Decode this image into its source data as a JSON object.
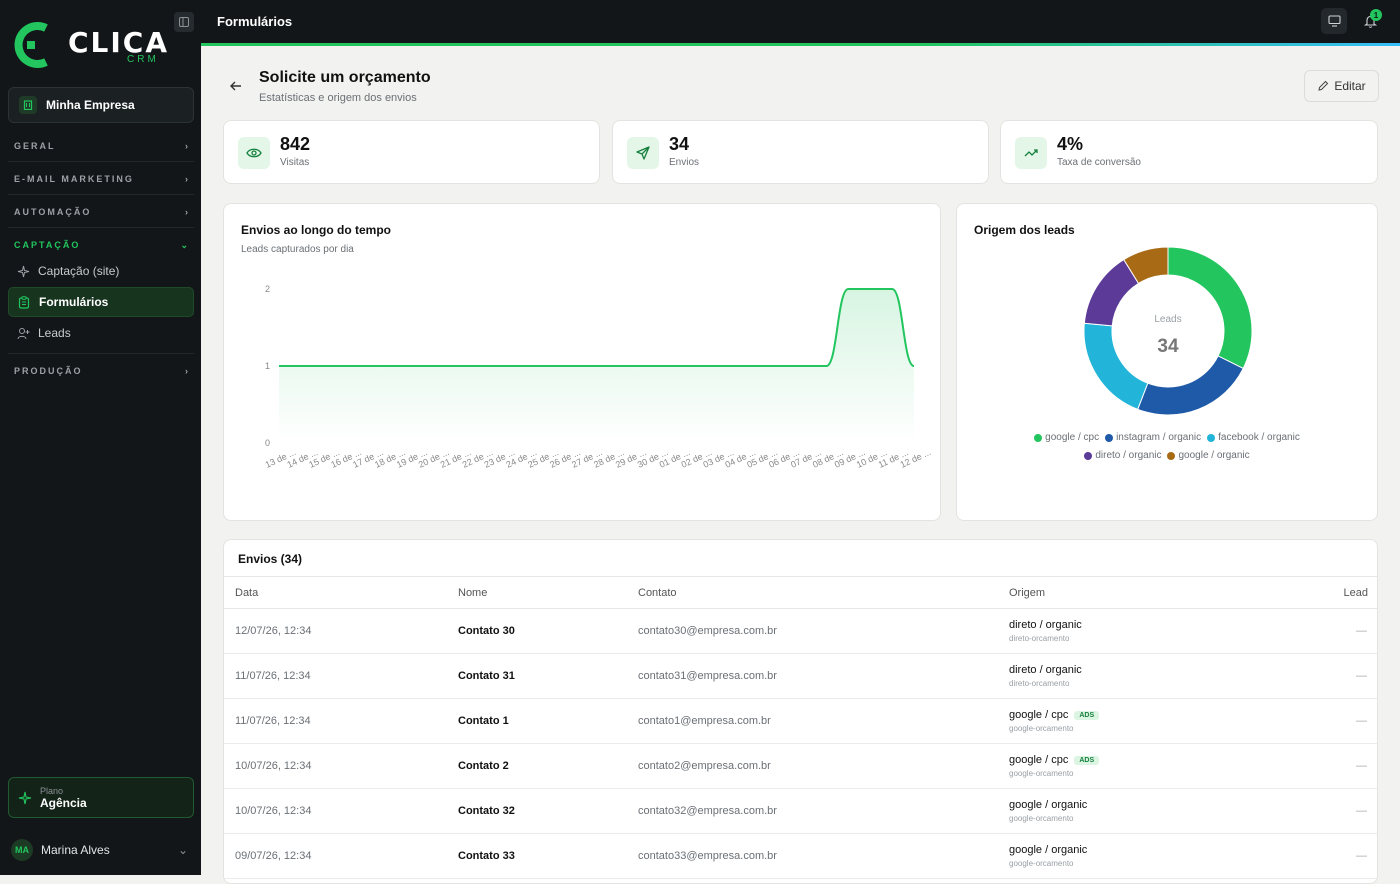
{
  "brand": {
    "name": "CLICA",
    "sub": "CRM"
  },
  "sidebar": {
    "company": "Minha Empresa",
    "sections": [
      {
        "label": "GERAL"
      },
      {
        "label": "E-MAIL MARKETING"
      },
      {
        "label": "AUTOMAÇÃO"
      },
      {
        "label": "CAPTAÇÃO"
      },
      {
        "label": "PRODUÇÃO"
      }
    ],
    "items": [
      {
        "label": "Captação (site)"
      },
      {
        "label": "Formulários"
      },
      {
        "label": "Leads"
      }
    ],
    "plan": {
      "label": "Plano",
      "value": "Agência"
    },
    "user": {
      "initials": "MA",
      "name": "Marina Alves"
    }
  },
  "topbar": {
    "title": "Formulários",
    "notifications": "1"
  },
  "header": {
    "title": "Solicite um orçamento",
    "subtitle": "Estatísticas e origem dos envios",
    "edit_label": "Editar"
  },
  "stats": [
    {
      "value": "842",
      "label": "Visitas",
      "icon": "eye-icon"
    },
    {
      "value": "34",
      "label": "Envios",
      "icon": "send-icon"
    },
    {
      "value": "4%",
      "label": "Taxa de conversão",
      "icon": "trending-up-icon"
    }
  ],
  "line_card": {
    "title": "Envios ao longo do tempo",
    "subtitle": "Leads capturados por dia"
  },
  "pie_card": {
    "title": "Origem dos leads",
    "center_label": "Leads",
    "center_value": "34"
  },
  "chart_data": [
    {
      "type": "area",
      "title": "Envios ao longo do tempo",
      "x": [
        "13 de ...",
        "14 de ...",
        "15 de ...",
        "16 de ...",
        "17 de ...",
        "18 de ...",
        "19 de ...",
        "20 de ...",
        "21 de ...",
        "22 de ...",
        "23 de ...",
        "24 de ...",
        "25 de ...",
        "26 de ...",
        "27 de ...",
        "28 de ...",
        "29 de ...",
        "30 de ...",
        "01 de ...",
        "02 de ...",
        "03 de ...",
        "04 de ...",
        "05 de ...",
        "06 de ...",
        "07 de ...",
        "08 de ...",
        "09 de ...",
        "10 de ...",
        "11 de ...",
        "12 de ..."
      ],
      "series": [
        {
          "values": [
            1,
            1,
            1,
            1,
            1,
            1,
            1,
            1,
            1,
            1,
            1,
            1,
            1,
            1,
            1,
            1,
            1,
            1,
            1,
            1,
            1,
            1,
            1,
            1,
            1,
            1,
            2,
            2,
            2,
            1
          ]
        }
      ],
      "yticks": [
        "0",
        "1",
        "2"
      ],
      "ylim": [
        0,
        2
      ],
      "color": "#22c55e"
    },
    {
      "type": "pie",
      "title": "Origem dos leads",
      "series": [
        {
          "name": "google / cpc",
          "value": 11,
          "color": "#22c55e"
        },
        {
          "name": "instagram / organic",
          "value": 8,
          "color": "#1e5aa8"
        },
        {
          "name": "facebook / organic",
          "value": 7,
          "color": "#22b5d9"
        },
        {
          "name": "direto / organic",
          "value": 5,
          "color": "#5b3a98"
        },
        {
          "name": "google / organic",
          "value": 3,
          "color": "#a86a14"
        }
      ]
    }
  ],
  "table": {
    "title": "Envios (34)",
    "columns": [
      "Data",
      "Nome",
      "Contato",
      "Origem",
      "Lead"
    ],
    "rows": [
      {
        "date": "12/07/26, 12:34",
        "name": "Contato 30",
        "contact": "contato30@empresa.com.br",
        "origin": "direto / organic",
        "form": "direto-orcamento",
        "ads": "",
        "lead": "—"
      },
      {
        "date": "11/07/26, 12:34",
        "name": "Contato 31",
        "contact": "contato31@empresa.com.br",
        "origin": "direto / organic",
        "form": "direto-orcamento",
        "ads": "",
        "lead": "—"
      },
      {
        "date": "11/07/26, 12:34",
        "name": "Contato 1",
        "contact": "contato1@empresa.com.br",
        "origin": "google / cpc",
        "form": "google-orcamento",
        "ads": "ADS",
        "lead": "—"
      },
      {
        "date": "10/07/26, 12:34",
        "name": "Contato 2",
        "contact": "contato2@empresa.com.br",
        "origin": "google / cpc",
        "form": "google-orcamento",
        "ads": "ADS",
        "lead": "—"
      },
      {
        "date": "10/07/26, 12:34",
        "name": "Contato 32",
        "contact": "contato32@empresa.com.br",
        "origin": "google / organic",
        "form": "google-orcamento",
        "ads": "",
        "lead": "—"
      },
      {
        "date": "09/07/26, 12:34",
        "name": "Contato 33",
        "contact": "contato33@empresa.com.br",
        "origin": "google / organic",
        "form": "google-orcamento",
        "ads": "",
        "lead": "—"
      }
    ]
  }
}
